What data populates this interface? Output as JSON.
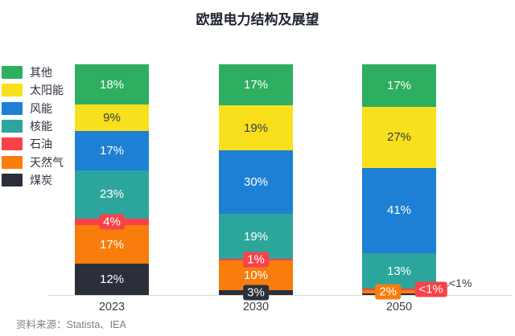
{
  "title": "欧盟电力结构及展望",
  "source": "资料来源：Statista、IEA",
  "colors": {
    "other": "#2eae60",
    "solar": "#f8e11c",
    "wind": "#1e80d4",
    "nuclear": "#2ca69c",
    "oil": "#f8424a",
    "gas": "#f87d0c",
    "coal": "#2b2f3b",
    "axis_line": "#d9d9d9",
    "axis_text": "#3a3f48",
    "source_text": "#7b8089"
  },
  "chart_data": {
    "type": "bar",
    "stacked": true,
    "unit": "%",
    "title": "欧盟电力结构及展望",
    "categories": [
      "2023",
      "2030",
      "2050"
    ],
    "series": [
      {
        "name": "其他",
        "color": "#2eae60",
        "label_color": "#ffffff",
        "values": [
          18,
          17,
          17
        ],
        "labels": [
          "18%",
          "17%",
          "17%"
        ]
      },
      {
        "name": "太阳能",
        "color": "#f8e11c",
        "label_color": "#333a45",
        "values": [
          9,
          19,
          27
        ],
        "labels": [
          "9%",
          "19%",
          "27%"
        ]
      },
      {
        "name": "风能",
        "color": "#1e80d4",
        "label_color": "#ffffff",
        "values": [
          17,
          30,
          41
        ],
        "labels": [
          "17%",
          "30%",
          "41%"
        ]
      },
      {
        "name": "核能",
        "color": "#2ca69c",
        "label_color": "#ffffff",
        "values": [
          23,
          19,
          13
        ],
        "labels": [
          "23%",
          "19%",
          "13%"
        ]
      },
      {
        "name": "石油",
        "color": "#f8424a",
        "label_color": "#ffffff",
        "values": [
          4,
          1,
          0.7
        ],
        "labels": [
          "4%",
          "1%",
          "<1%"
        ]
      },
      {
        "name": "天然气",
        "color": "#f87d0c",
        "label_color": "#ffffff",
        "values": [
          17,
          10,
          2
        ],
        "labels": [
          "17%",
          "10%",
          "2%"
        ]
      },
      {
        "name": "煤炭",
        "color": "#2b2f3b",
        "label_color": "#ffffff",
        "values": [
          12,
          3,
          0.7
        ],
        "labels": [
          "12%",
          "3%",
          "<1%"
        ]
      }
    ],
    "annotation": {
      "category": "2050",
      "series": "煤炭",
      "text": "<1%"
    },
    "layout_hints": {
      "legend_position": "left",
      "chip_threshold": 4.5,
      "chip_offsets": {
        "2050|石油": "93%",
        "2050|天然气": "35%"
      },
      "ylim": [
        0,
        100
      ],
      "grid": false
    }
  }
}
